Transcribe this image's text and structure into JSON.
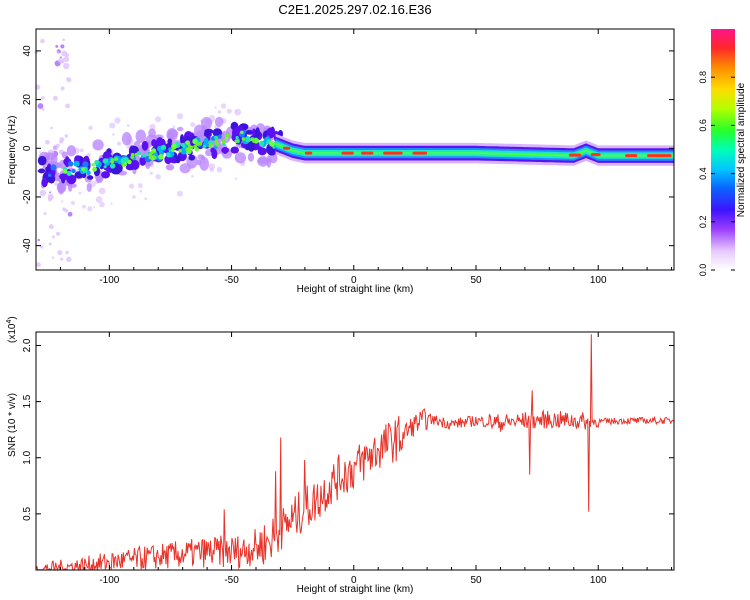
{
  "title": "C2E1.2025.297.02.16.E36",
  "chart_data": [
    {
      "type": "heatmap",
      "xlabel": "Height of straight line (km)",
      "ylabel": "Frequency (Hz)",
      "xlim": [
        -130,
        131
      ],
      "ylim": [
        -50,
        49
      ],
      "xticks": [
        "-100",
        "-50",
        "0",
        "50",
        "100"
      ],
      "xtick_values": [
        -100,
        -50,
        0,
        50,
        100
      ],
      "yticks": [
        "-40",
        "-20",
        "0",
        "20",
        "40"
      ],
      "ytick_values": [
        -40,
        -20,
        0,
        20,
        40
      ],
      "colorbar": {
        "label": "Normalized spectral amplitude",
        "range": [
          0,
          1
        ],
        "ticks": [
          "0.0",
          "0.2",
          "0.4",
          "0.6",
          "0.8"
        ],
        "tick_values": [
          0,
          0.2,
          0.4,
          0.6,
          0.8
        ]
      },
      "ridge": {
        "x": [
          -130,
          -120,
          -110,
          -100,
          -90,
          -80,
          -70,
          -60,
          -50,
          -45,
          -40,
          -35,
          -30,
          -25,
          -20,
          0,
          50,
          90,
          95,
          100,
          131
        ],
        "freq": [
          -10,
          -9,
          -8,
          -6,
          -4,
          -2,
          0,
          2,
          4,
          5,
          4,
          3,
          1,
          -1,
          -2,
          -2,
          -2,
          -3,
          -1,
          -3,
          -3
        ]
      }
    },
    {
      "type": "line",
      "xlabel": "Height of straight line (km)",
      "ylabel": "SNR (10 * v/v)",
      "exponent_label": "(x10",
      "exponent_sup": "4",
      "exponent_close": ")",
      "xlim": [
        -130,
        131
      ],
      "ylim": [
        0,
        2.12
      ],
      "xticks": [
        "-100",
        "-50",
        "0",
        "50",
        "100"
      ],
      "xtick_values": [
        -100,
        -50,
        0,
        50,
        100
      ],
      "yticks": [
        "0.5",
        "1.0",
        "1.5",
        "2.0"
      ],
      "ytick_values": [
        0.5,
        1.0,
        1.5,
        2.0
      ],
      "color": "#e8332a",
      "trend": {
        "x": [
          -130,
          -110,
          -100,
          -80,
          -60,
          -45,
          -35,
          -30,
          -25,
          -20,
          -15,
          -10,
          -5,
          0,
          10,
          20,
          25,
          30,
          40,
          50,
          60,
          70,
          80,
          90,
          100,
          110,
          131
        ],
        "y": [
          0.0,
          0.04,
          0.07,
          0.12,
          0.16,
          0.17,
          0.25,
          0.35,
          0.45,
          0.55,
          0.62,
          0.75,
          0.85,
          0.9,
          1.08,
          1.2,
          1.3,
          1.35,
          1.3,
          1.33,
          1.31,
          1.33,
          1.34,
          1.33,
          1.32,
          1.33,
          1.33
        ]
      },
      "spikes": [
        {
          "x": -53,
          "y": 0.54
        },
        {
          "x": -32,
          "y": 0.88
        },
        {
          "x": -30,
          "y": 1.18
        },
        {
          "x": -20,
          "y": 0.98
        },
        {
          "x": 72,
          "y": 0.85
        },
        {
          "x": 73,
          "y": 1.6
        },
        {
          "x": 96,
          "y": 0.52
        },
        {
          "x": 97,
          "y": 2.1
        }
      ]
    }
  ]
}
